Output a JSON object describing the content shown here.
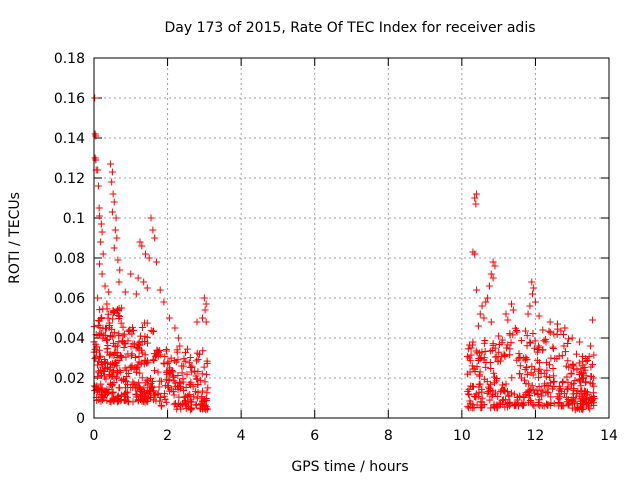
{
  "chart_data": {
    "type": "scatter",
    "title": "Day 173 of 2015, Rate Of TEC Index for receiver adis",
    "xlabel": "GPS time / hours",
    "ylabel": "ROTI / TECUs",
    "xlim": [
      0,
      14
    ],
    "ylim": [
      0,
      0.18
    ],
    "xticks": [
      0,
      2,
      4,
      6,
      8,
      10,
      12,
      14
    ],
    "xtick_labels": [
      "0",
      "2",
      "4",
      "6",
      "8",
      "10",
      "12",
      "14"
    ],
    "yticks": [
      0,
      0.02,
      0.04,
      0.06,
      0.08,
      0.1,
      0.12,
      0.14,
      0.16,
      0.18
    ],
    "ytick_labels": [
      "0",
      "0.02",
      "0.04",
      "0.06",
      "0.08",
      "0.1",
      "0.12",
      "0.14",
      "0.16",
      "0.18"
    ],
    "grid": true,
    "marker": "+",
    "series": [
      {
        "name": "ROTI",
        "color": "#ff0000",
        "points": [
          [
            0.02,
            0.16
          ],
          [
            0.03,
            0.142
          ],
          [
            0.05,
            0.141
          ],
          [
            0.03,
            0.13
          ],
          [
            0.05,
            0.129
          ],
          [
            0.06,
            0.124
          ],
          [
            0.1,
            0.124
          ],
          [
            0.12,
            0.116
          ],
          [
            0.14,
            0.105
          ],
          [
            0.15,
            0.101
          ],
          [
            0.2,
            0.097
          ],
          [
            0.22,
            0.093
          ],
          [
            0.18,
            0.088
          ],
          [
            0.25,
            0.082
          ],
          [
            0.45,
            0.127
          ],
          [
            0.5,
            0.123
          ],
          [
            0.48,
            0.118
          ],
          [
            0.52,
            0.112
          ],
          [
            0.55,
            0.108
          ],
          [
            0.5,
            0.103
          ],
          [
            0.6,
            0.1
          ],
          [
            0.58,
            0.094
          ],
          [
            0.62,
            0.09
          ],
          [
            0.55,
            0.085
          ],
          [
            0.65,
            0.079
          ],
          [
            0.7,
            0.074
          ],
          [
            0.68,
            0.068
          ],
          [
            0.15,
            0.077
          ],
          [
            0.22,
            0.072
          ],
          [
            0.3,
            0.066
          ],
          [
            0.4,
            0.063
          ],
          [
            0.85,
            0.063
          ],
          [
            0.1,
            0.06
          ],
          [
            0.35,
            0.057
          ],
          [
            0.75,
            0.055
          ],
          [
            1.0,
            0.072
          ],
          [
            1.2,
            0.07
          ],
          [
            1.25,
            0.088
          ],
          [
            1.3,
            0.086
          ],
          [
            1.55,
            0.1
          ],
          [
            1.6,
            0.094
          ],
          [
            1.65,
            0.09
          ],
          [
            1.4,
            0.082
          ],
          [
            1.5,
            0.08
          ],
          [
            1.7,
            0.078
          ],
          [
            1.35,
            0.068
          ],
          [
            1.45,
            0.065
          ],
          [
            1.8,
            0.064
          ],
          [
            1.15,
            0.062
          ],
          [
            1.9,
            0.058
          ],
          [
            2.05,
            0.05
          ],
          [
            2.2,
            0.045
          ],
          [
            2.3,
            0.04
          ],
          [
            2.8,
            0.048
          ],
          [
            3.0,
            0.06
          ],
          [
            3.05,
            0.057
          ],
          [
            3.02,
            0.054
          ],
          [
            2.95,
            0.05
          ],
          [
            3.05,
            0.048
          ],
          [
            10.35,
            0.11
          ],
          [
            10.4,
            0.112
          ],
          [
            10.38,
            0.107
          ],
          [
            10.3,
            0.083
          ],
          [
            10.35,
            0.082
          ],
          [
            10.85,
            0.078
          ],
          [
            10.9,
            0.076
          ],
          [
            10.8,
            0.072
          ],
          [
            10.85,
            0.07
          ],
          [
            10.75,
            0.066
          ],
          [
            10.4,
            0.064
          ],
          [
            10.7,
            0.06
          ],
          [
            10.65,
            0.058
          ],
          [
            10.55,
            0.056
          ],
          [
            10.5,
            0.052
          ],
          [
            10.6,
            0.05
          ],
          [
            10.8,
            0.048
          ],
          [
            10.45,
            0.046
          ],
          [
            11.35,
            0.057
          ],
          [
            11.4,
            0.054
          ],
          [
            11.2,
            0.052
          ],
          [
            11.25,
            0.049
          ],
          [
            11.9,
            0.068
          ],
          [
            11.95,
            0.065
          ],
          [
            11.92,
            0.062
          ],
          [
            12.0,
            0.058
          ],
          [
            11.85,
            0.056
          ],
          [
            11.8,
            0.052
          ],
          [
            12.1,
            0.051
          ],
          [
            12.4,
            0.048
          ],
          [
            12.6,
            0.047
          ],
          [
            12.8,
            0.045
          ],
          [
            13.0,
            0.04
          ],
          [
            13.55,
            0.049
          ],
          [
            13.5,
            0.036
          ],
          [
            13.2,
            0.038
          ],
          [
            10.2,
            0.03
          ],
          [
            10.25,
            0.035
          ],
          [
            10.3,
            0.038
          ],
          [
            11.0,
            0.041
          ],
          [
            11.1,
            0.039
          ],
          [
            11.5,
            0.043
          ],
          [
            12.2,
            0.044
          ],
          [
            12.5,
            0.042
          ]
        ],
        "dense_clusters": [
          {
            "x_range": [
              0.0,
              0.7
            ],
            "y_range": [
              0.008,
              0.055
            ],
            "count": 180
          },
          {
            "x_range": [
              0.7,
              1.7
            ],
            "y_range": [
              0.008,
              0.048
            ],
            "count": 170
          },
          {
            "x_range": [
              1.7,
              3.1
            ],
            "y_range": [
              0.004,
              0.036
            ],
            "count": 170
          },
          {
            "x_range": [
              10.15,
              11.3
            ],
            "y_range": [
              0.005,
              0.04
            ],
            "count": 140
          },
          {
            "x_range": [
              11.3,
              12.9
            ],
            "y_range": [
              0.006,
              0.046
            ],
            "count": 180
          },
          {
            "x_range": [
              12.9,
              13.6
            ],
            "y_range": [
              0.004,
              0.032
            ],
            "count": 110
          }
        ]
      }
    ]
  }
}
